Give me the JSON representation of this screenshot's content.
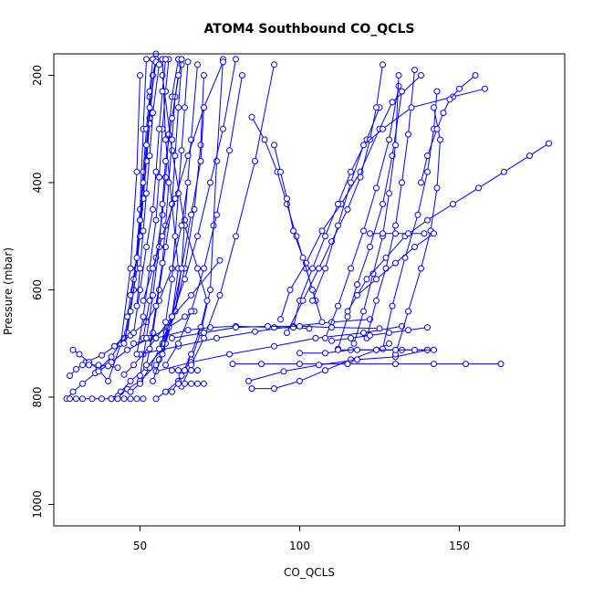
{
  "chart_data": {
    "type": "line",
    "title": "ATOM4 Southbound CO_QCLS",
    "xlabel": "CO_QCLS",
    "ylabel": "Pressure (mbar)",
    "xlim": [
      23,
      183
    ],
    "ylim": [
      1040,
      160
    ],
    "y_reversed": true,
    "x_ticks": [
      50,
      100,
      150
    ],
    "y_ticks": [
      200,
      400,
      600,
      800,
      1000
    ],
    "x_tick_labels": [
      "50",
      "100",
      "150"
    ],
    "y_tick_labels": [
      "200",
      "400",
      "600",
      "800",
      "1000"
    ],
    "grid": false,
    "legend": "none",
    "line_color": "#0000ff",
    "marker": "open-circle",
    "series": [
      {
        "x": [
          27,
          29,
          32,
          36,
          41,
          45,
          48,
          50,
          51,
          52
        ],
        "y": [
          803,
          790,
          775,
          755,
          725,
          690,
          600,
          450,
          300,
          170
        ]
      },
      {
        "x": [
          28,
          30,
          33,
          38,
          42,
          46,
          49,
          51,
          53,
          55
        ],
        "y": [
          760,
          748,
          735,
          722,
          705,
          680,
          560,
          420,
          280,
          160
        ]
      },
      {
        "x": [
          29,
          31,
          34,
          37,
          40,
          44,
          47,
          49,
          50
        ],
        "y": [
          712,
          720,
          735,
          748,
          770,
          700,
          560,
          380,
          200
        ]
      },
      {
        "x": [
          41,
          44,
          47,
          52,
          57,
          60,
          62,
          60,
          58,
          57
        ],
        "y": [
          803,
          790,
          770,
          745,
          710,
          650,
          560,
          440,
          320,
          170
        ]
      },
      {
        "x": [
          43,
          46,
          50,
          55,
          58,
          61,
          63,
          64,
          66,
          68
        ],
        "y": [
          798,
          785,
          770,
          740,
          700,
          640,
          560,
          470,
          320,
          180
        ]
      },
      {
        "x": [
          47,
          50,
          53,
          57,
          61,
          64,
          67,
          69,
          70
        ],
        "y": [
          790,
          775,
          745,
          700,
          640,
          560,
          450,
          330,
          200
        ]
      },
      {
        "x": [
          55,
          58,
          62,
          66,
          69,
          72,
          73,
          74,
          76
        ],
        "y": [
          803,
          790,
          770,
          730,
          680,
          600,
          480,
          360,
          170
        ]
      },
      {
        "x": [
          60,
          63,
          66,
          69,
          71,
          68,
          64,
          60,
          57
        ],
        "y": [
          790,
          760,
          720,
          670,
          620,
          560,
          480,
          340,
          200
        ]
      },
      {
        "x": [
          45,
          48,
          51,
          55,
          60,
          66,
          75
        ],
        "y": [
          758,
          740,
          720,
          690,
          650,
          610,
          545
        ]
      },
      {
        "x": [
          37,
          41,
          46,
          53,
          59,
          64,
          67
        ],
        "y": [
          752,
          735,
          712,
          690,
          670,
          650,
          640
        ]
      },
      {
        "x": [
          55,
          66,
          78,
          92,
          105,
          120,
          132
        ],
        "y": [
          752,
          735,
          720,
          705,
          690,
          680,
          668
        ]
      },
      {
        "x": [
          50,
          62,
          74,
          86,
          98,
          110,
          122
        ],
        "y": [
          720,
          705,
          690,
          678,
          668,
          660,
          655
        ]
      },
      {
        "x": [
          48,
          55,
          65,
          72,
          80,
          92,
          103
        ],
        "y": [
          700,
          690,
          675,
          670,
          668,
          670,
          672
        ]
      },
      {
        "x": [
          42,
          47,
          52,
          56,
          60,
          63,
          65
        ],
        "y": [
          705,
          685,
          660,
          620,
          560,
          480,
          400
        ]
      },
      {
        "x": [
          45,
          47,
          49,
          50,
          51,
          52,
          53,
          54,
          55
        ],
        "y": [
          700,
          640,
          560,
          470,
          380,
          300,
          240,
          200,
          170
        ]
      },
      {
        "x": [
          49,
          51,
          53,
          55,
          56,
          57,
          58,
          59
        ],
        "y": [
          720,
          650,
          560,
          470,
          390,
          300,
          230,
          170
        ]
      },
      {
        "x": [
          52,
          54,
          56,
          58,
          60,
          61,
          62,
          63
        ],
        "y": [
          740,
          680,
          600,
          520,
          440,
          350,
          260,
          180
        ]
      },
      {
        "x": [
          46,
          48,
          50,
          51,
          52,
          53,
          53,
          54
        ],
        "y": [
          650,
          580,
          500,
          430,
          360,
          290,
          230,
          170
        ]
      },
      {
        "x": [
          48,
          50,
          52,
          54,
          55,
          56,
          57,
          58
        ],
        "y": [
          680,
          600,
          520,
          450,
          380,
          300,
          230,
          170
        ]
      },
      {
        "x": [
          51,
          53,
          55,
          57,
          58,
          59,
          60,
          62
        ],
        "y": [
          690,
          620,
          540,
          460,
          390,
          310,
          240,
          170
        ]
      },
      {
        "x": [
          53,
          55,
          57,
          58,
          59,
          60,
          61,
          63
        ],
        "y": [
          710,
          630,
          550,
          480,
          400,
          320,
          240,
          170
        ]
      },
      {
        "x": [
          56,
          58,
          60,
          61,
          62,
          63,
          64,
          65
        ],
        "y": [
          730,
          660,
          580,
          500,
          420,
          340,
          260,
          175
        ]
      },
      {
        "x": [
          50,
          52,
          54,
          56,
          57,
          58,
          60,
          62
        ],
        "y": [
          760,
          690,
          610,
          520,
          440,
          360,
          280,
          200
        ]
      },
      {
        "x": [
          54,
          57,
          60,
          63,
          66,
          69,
          70
        ],
        "y": [
          770,
          720,
          650,
          560,
          460,
          360,
          260
        ]
      },
      {
        "x": [
          47,
          49,
          50,
          51,
          52,
          53,
          55
        ],
        "y": [
          610,
          540,
          470,
          400,
          330,
          260,
          175
        ]
      },
      {
        "x": [
          49,
          50,
          51,
          52,
          53,
          54,
          56
        ],
        "y": [
          630,
          560,
          490,
          420,
          350,
          270,
          180
        ]
      },
      {
        "x": [
          58,
          62,
          66,
          70,
          74,
          78,
          82
        ],
        "y": [
          740,
          700,
          640,
          560,
          460,
          340,
          200
        ]
      },
      {
        "x": [
          56,
          60,
          64,
          68,
          72,
          76,
          80
        ],
        "y": [
          710,
          650,
          580,
          500,
          400,
          300,
          170
        ]
      },
      {
        "x": [
          63,
          66,
          70,
          75,
          80,
          86,
          92
        ],
        "y": [
          780,
          740,
          690,
          610,
          500,
          360,
          180
        ]
      },
      {
        "x": [
          51,
          54,
          57,
          61,
          65,
          70,
          76
        ],
        "y": [
          620,
          560,
          500,
          430,
          350,
          260,
          175
        ]
      },
      {
        "x": [
          79,
          88,
          100,
          115,
          130,
          142,
          152,
          163
        ],
        "y": [
          738,
          738,
          738,
          738,
          738,
          738,
          738,
          738
        ]
      },
      {
        "x": [
          85,
          92,
          100,
          108,
          116,
          124,
          128
        ],
        "y": [
          784,
          784,
          770,
          750,
          730,
          712,
          700
        ]
      },
      {
        "x": [
          84,
          95,
          106,
          118,
          130,
          140
        ],
        "y": [
          770,
          752,
          740,
          730,
          725,
          712
        ]
      },
      {
        "x": [
          100,
          108,
          116,
          124,
          132,
          140
        ],
        "y": [
          718,
          718,
          712,
          712,
          712,
          712
        ]
      },
      {
        "x": [
          94,
          97,
          102,
          107,
          113,
          119,
          125,
          129,
          138
        ],
        "y": [
          655,
          600,
          550,
          490,
          440,
          380,
          300,
          250,
          200
        ]
      },
      {
        "x": [
          98,
          100,
          104,
          108,
          112,
          116,
          121,
          125
        ],
        "y": [
          670,
          620,
          560,
          500,
          440,
          380,
          320,
          260
        ]
      },
      {
        "x": [
          96,
          101,
          106,
          110,
          115,
          119,
          122,
          124,
          126
        ],
        "y": [
          680,
          620,
          560,
          510,
          450,
          390,
          320,
          260,
          180
        ]
      },
      {
        "x": [
          108,
          112,
          116,
          120,
          124,
          128,
          131
        ],
        "y": [
          690,
          630,
          560,
          490,
          410,
          320,
          220
        ]
      },
      {
        "x": [
          112,
          115,
          118,
          122,
          126,
          129,
          132
        ],
        "y": [
          710,
          650,
          590,
          520,
          440,
          350,
          230
        ]
      },
      {
        "x": [
          117,
          120,
          123,
          126,
          128,
          130,
          131
        ],
        "y": [
          700,
          640,
          570,
          500,
          420,
          330,
          200
        ]
      },
      {
        "x": [
          121,
          124,
          127,
          130,
          132,
          134,
          136
        ],
        "y": [
          690,
          620,
          560,
          480,
          400,
          310,
          190
        ]
      },
      {
        "x": [
          126,
          129,
          133,
          137,
          140,
          142,
          143
        ],
        "y": [
          710,
          630,
          540,
          460,
          380,
          300,
          230
        ]
      },
      {
        "x": [
          130,
          134,
          138,
          141,
          143,
          144,
          142
        ],
        "y": [
          720,
          640,
          560,
          490,
          410,
          320,
          260
        ]
      },
      {
        "x": [
          85,
          89,
          93,
          96,
          99,
          102,
          105
        ],
        "y": [
          278,
          320,
          380,
          440,
          500,
          560,
          620
        ]
      },
      {
        "x": [
          92,
          94,
          96,
          98,
          101,
          104,
          107
        ],
        "y": [
          330,
          380,
          430,
          490,
          540,
          600,
          660
        ]
      },
      {
        "x": [
          104,
          108,
          112,
          116,
          120,
          126,
          135,
          148,
          158
        ],
        "y": [
          620,
          560,
          480,
          400,
          330,
          300,
          260,
          240,
          225
        ]
      },
      {
        "x": [
          115,
          121,
          127,
          133,
          140,
          148,
          156,
          164,
          172,
          178
        ],
        "y": [
          640,
          580,
          540,
          500,
          470,
          440,
          410,
          380,
          350,
          327
        ]
      },
      {
        "x": [
          118,
          124,
          130,
          136,
          142
        ],
        "y": [
          610,
          580,
          550,
          520,
          495
        ]
      },
      {
        "x": [
          122,
          126,
          130,
          134,
          139
        ],
        "y": [
          495,
          495,
          495,
          495,
          495
        ]
      },
      {
        "x": [
          112,
          118,
          124,
          130,
          136,
          142
        ],
        "y": [
          712,
          712,
          712,
          712,
          712,
          712
        ]
      },
      {
        "x": [
          110,
          116,
          122,
          128,
          134,
          140
        ],
        "y": [
          695,
          690,
          685,
          680,
          675,
          670
        ]
      },
      {
        "x": [
          138,
          140,
          143,
          145,
          147,
          150,
          155
        ],
        "y": [
          400,
          350,
          300,
          270,
          245,
          225,
          200
        ]
      },
      {
        "x": [
          60,
          70,
          80,
          90,
          100,
          110,
          125
        ],
        "y": [
          690,
          680,
          670,
          668,
          668,
          670,
          672
        ]
      },
      {
        "x": [
          32,
          34,
          37,
          40,
          43
        ],
        "y": [
          740,
          740,
          740,
          742,
          745
        ]
      },
      {
        "x": [
          28,
          30,
          32,
          35,
          38,
          41
        ],
        "y": [
          803,
          803,
          803,
          803,
          803,
          803
        ]
      },
      {
        "x": [
          41,
          43,
          45,
          47,
          49,
          51
        ],
        "y": [
          803,
          803,
          803,
          803,
          803,
          803
        ]
      },
      {
        "x": [
          62,
          64,
          66,
          68,
          70
        ],
        "y": [
          775,
          775,
          775,
          775,
          775
        ]
      },
      {
        "x": [
          60,
          62,
          64,
          66,
          68
        ],
        "y": [
          750,
          750,
          750,
          750,
          750
        ]
      }
    ]
  }
}
